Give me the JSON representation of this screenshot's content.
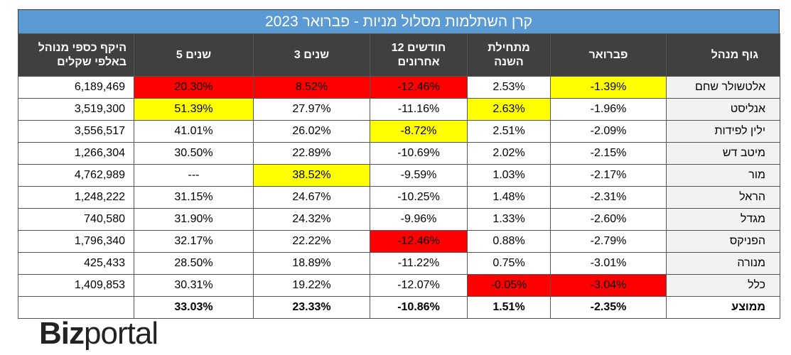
{
  "title": "קרן השתלמות מסלול מניות - פברואר 2023",
  "colors": {
    "header_bg": "#404040",
    "title_bg": "#5b9bd5",
    "red": "#ff0000",
    "yellow": "#ffff00"
  },
  "columns": {
    "aum": "היקף כספי מנוהל באלפי שקלים",
    "y5": "5 שנים",
    "y3": "3 שנים",
    "m12": "12 חודשים אחרונים",
    "ytd": "מתחילת השנה",
    "feb": "פברואר",
    "manager": "גוף מנהל"
  },
  "rows": [
    {
      "manager": "אלטשולר שחם",
      "feb": "-1.39%",
      "ytd": "2.53%",
      "m12": "-12.46%",
      "y3": "8.52%",
      "y5": "20.30%",
      "aum": "6,189,469",
      "hl": {
        "feb": "yellow",
        "m12": "red",
        "y3": "red",
        "y5": "red"
      }
    },
    {
      "manager": "אנליסט",
      "feb": "-1.96%",
      "ytd": "2.63%",
      "m12": "-11.16%",
      "y3": "27.97%",
      "y5": "51.39%",
      "aum": "3,519,300",
      "hl": {
        "ytd": "yellow",
        "y5": "yellow"
      }
    },
    {
      "manager": "ילין לפידות",
      "feb": "-2.09%",
      "ytd": "2.51%",
      "m12": "-8.72%",
      "y3": "26.02%",
      "y5": "41.01%",
      "aum": "3,556,517",
      "hl": {
        "m12": "yellow"
      }
    },
    {
      "manager": "מיטב דש",
      "feb": "-2.15%",
      "ytd": "2.02%",
      "m12": "-10.69%",
      "y3": "22.89%",
      "y5": "30.50%",
      "aum": "1,266,304",
      "hl": {}
    },
    {
      "manager": "מור",
      "feb": "-2.17%",
      "ytd": "1.03%",
      "m12": "-9.59%",
      "y3": "38.52%",
      "y5": "---",
      "aum": "4,762,989",
      "hl": {
        "y3": "yellow"
      }
    },
    {
      "manager": "הראל",
      "feb": "-2.31%",
      "ytd": "1.48%",
      "m12": "-10.25%",
      "y3": "24.67%",
      "y5": "31.15%",
      "aum": "1,248,222",
      "hl": {}
    },
    {
      "manager": "מגדל",
      "feb": "-2.60%",
      "ytd": "1.33%",
      "m12": "-9.96%",
      "y3": "24.32%",
      "y5": "31.90%",
      "aum": "740,580",
      "hl": {}
    },
    {
      "manager": "הפניקס",
      "feb": "-2.79%",
      "ytd": "0.88%",
      "m12": "-12.46%",
      "y3": "22.22%",
      "y5": "32.17%",
      "aum": "1,796,340",
      "hl": {
        "m12": "red"
      }
    },
    {
      "manager": "מנורה",
      "feb": "-3.01%",
      "ytd": "0.75%",
      "m12": "-11.22%",
      "y3": "18.89%",
      "y5": "28.50%",
      "aum": "425,433",
      "hl": {}
    },
    {
      "manager": "כלל",
      "feb": "-3.04%",
      "ytd": "-0.05%",
      "m12": "-12.07%",
      "y3": "19.22%",
      "y5": "30.31%",
      "aum": "1,409,853",
      "hl": {
        "feb": "red",
        "ytd": "red"
      }
    }
  ],
  "average": {
    "manager": "ממוצע",
    "feb": "-2.35%",
    "ytd": "1.51%",
    "m12": "-10.86%",
    "y3": "23.33%",
    "y5": "33.03%",
    "aum": ""
  },
  "logo": {
    "bold": "Biz",
    "light": "portal"
  }
}
